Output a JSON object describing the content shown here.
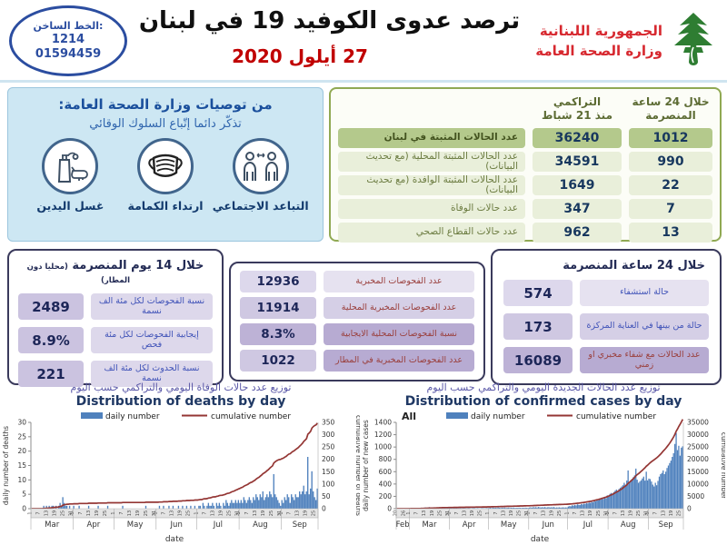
{
  "theme": {
    "accent_blue": "#2b4da0",
    "accent_red": "#c00000",
    "logo_red": "#d7282f",
    "cedar_green": "#2e7d32",
    "green_table_border": "#90a953",
    "purple_box_border": "#3a3a5c",
    "bar_blue": "#4f81bd",
    "line_red": "#943634"
  },
  "header": {
    "hotline": {
      "label": "الخط الساخن:",
      "number1": "1214",
      "number2": "01594459"
    },
    "title": "ترصد عدوى الكوفيد 19 في لبنان",
    "date": "27 أيلول 2020",
    "logo": {
      "line1": "الجمهورية اللبنانية",
      "line2": "وزارة الصحة العامة"
    }
  },
  "recommendations": {
    "title": "من توصيات وزارة الصحة العامة:",
    "subtitle": "تذكّر دائما إتّباع السلوك الوقائي",
    "items": [
      {
        "label": "التباعد الاجتماعي",
        "icon": "social-distancing-icon"
      },
      {
        "label": "ارتداء الكمامة",
        "icon": "face-mask-icon"
      },
      {
        "label": "غسل اليدين",
        "icon": "hand-washing-icon"
      }
    ]
  },
  "cases_table": {
    "col_headers": {
      "cumulative_1": "التراكمي",
      "cumulative_2": "منذ 21 شباط",
      "last24_1": "خلال 24 ساعة",
      "last24_2": "المنصرمة"
    },
    "rows": [
      {
        "label": "عدد الحالات المثبتة في لبنان",
        "cumulative": "36240",
        "last24": "1012"
      },
      {
        "label": "عدد الحالات المثبتة المحلية (مع تحديث البيانات)",
        "cumulative": "34591",
        "last24": "990"
      },
      {
        "label": "عدد الحالات المثبتة الوافدة (مع تحديث البيانات)",
        "cumulative": "1649",
        "last24": "22"
      },
      {
        "label": "عدد حالات الوفاة",
        "cumulative": "347",
        "last24": "7"
      },
      {
        "label": "عدد حالات القطاع الصحي",
        "cumulative": "962",
        "last24": "13"
      }
    ]
  },
  "fourteen_day_box": {
    "title": "خلال 14 يوم المنصرمة",
    "title_note": "(محليا دون المطار)",
    "rows": [
      {
        "label": "نسبة الفحوصات لكل مئة الف نسمة",
        "value": "2489"
      },
      {
        "label": "إيجابية الفحوصات لكل مئة فحص",
        "value": "8.9%"
      },
      {
        "label": "نسبة الحدوث لكل مئة الف نسمة",
        "value": "221"
      }
    ]
  },
  "tests_box": {
    "rows": [
      {
        "label": "عدد الفحوصات المخبرية",
        "value": "12936"
      },
      {
        "label": "عدد الفحوصات المخبرية المحلية",
        "value": "11914"
      },
      {
        "label": "نسبة الفحوصات المحلية الايجابية",
        "value": "8.3%"
      },
      {
        "label": "عدد الفحوصات المخبرية في المطار",
        "value": "1022"
      }
    ]
  },
  "last24_box": {
    "title": "خلال 24 ساعة المنصرمة",
    "rows": [
      {
        "label": "حالة استشفاء",
        "value": "574"
      },
      {
        "label": "حالة من بينها في العناية المركزة",
        "value": "173"
      },
      {
        "label": "عدد الحالات مع شفاء مخبري او زمني",
        "value": "16089"
      }
    ]
  },
  "chart_data": [
    {
      "type": "bar+line",
      "title_ar": "توزيع عدد حالات  الوفاة اليومي والتراكمي حسب اليوم",
      "title_en": "Distribution of deaths by day",
      "legend": [
        "daily number",
        "cumulative number"
      ],
      "ylabel_left": "daily number of deaths",
      "ylabel_right": "cumulative number of deaths",
      "xlabel": "date",
      "ylim_left": [
        0,
        30
      ],
      "yticks_left": [
        0,
        5,
        10,
        15,
        20,
        25,
        30
      ],
      "ylim_right": [
        0,
        350
      ],
      "yticks_right": [
        0,
        50,
        100,
        150,
        200,
        250,
        300,
        350
      ],
      "bar_color": "#4f81bd",
      "line_color": "#943634",
      "grid": false,
      "legend_position": "top",
      "months": [
        {
          "label": "Mar",
          "days": 31
        },
        {
          "label": "Apr",
          "days": 30
        },
        {
          "label": "May",
          "days": 31
        },
        {
          "label": "Jun",
          "days": 30
        },
        {
          "label": "Jul",
          "days": 31
        },
        {
          "label": "Aug",
          "days": 31
        },
        {
          "label": "Sep",
          "days": 27
        }
      ],
      "cumulative_total": 347,
      "daily": [
        0,
        0,
        0,
        0,
        0,
        0,
        0,
        0,
        0,
        1,
        0,
        1,
        0,
        1,
        0,
        1,
        1,
        0,
        1,
        0,
        1,
        2,
        1,
        4,
        2,
        1,
        1,
        0,
        1,
        0,
        0,
        1,
        0,
        0,
        0,
        1,
        0,
        0,
        0,
        0,
        0,
        0,
        1,
        0,
        0,
        0,
        0,
        0,
        0,
        1,
        0,
        0,
        0,
        0,
        0,
        0,
        1,
        0,
        0,
        0,
        0,
        0,
        0,
        0,
        0,
        0,
        0,
        1,
        0,
        0,
        0,
        0,
        0,
        0,
        0,
        0,
        0,
        0,
        0,
        0,
        0,
        0,
        0,
        0,
        1,
        0,
        0,
        0,
        0,
        0,
        0,
        0,
        0,
        0,
        1,
        0,
        0,
        1,
        0,
        0,
        0,
        1,
        0,
        0,
        1,
        0,
        0,
        0,
        1,
        0,
        0,
        1,
        0,
        0,
        1,
        0,
        0,
        1,
        0,
        0,
        1,
        0,
        0,
        1,
        1,
        0,
        2,
        1,
        0,
        1,
        2,
        1,
        1,
        2,
        1,
        0,
        2,
        1,
        2,
        1,
        0,
        2,
        1,
        3,
        2,
        1,
        2,
        3,
        2,
        2,
        3,
        2,
        3,
        2,
        3,
        2,
        4,
        3,
        2,
        3,
        4,
        3,
        2,
        4,
        3,
        5,
        4,
        3,
        5,
        4,
        6,
        3,
        4,
        5,
        4,
        6,
        5,
        4,
        12,
        5,
        4,
        3,
        2,
        1,
        3,
        2,
        4,
        3,
        5,
        4,
        2,
        5,
        4,
        3,
        5,
        4,
        4,
        6,
        5,
        6,
        8,
        5,
        6,
        18,
        5,
        7,
        13,
        6,
        4,
        3,
        7
      ]
    },
    {
      "type": "bar+line",
      "title_ar": "توزيع عدد الحالات الجديدة اليومي والتراكمي حسب اليوم",
      "title_en": "Distribution of confirmed cases by day",
      "series_label": "All",
      "legend": [
        "daily number",
        "cumulative number"
      ],
      "ylabel_left": "daily number of new cases",
      "ylabel_right": "cumulative number",
      "xlabel": "date",
      "ylim_left": [
        0,
        1400
      ],
      "yticks_left": [
        0,
        200,
        400,
        600,
        800,
        1000,
        1200,
        1400
      ],
      "ylim_right": [
        0,
        35000
      ],
      "yticks_right": [
        0,
        5000,
        10000,
        15000,
        20000,
        25000,
        30000,
        35000
      ],
      "bar_color": "#4f81bd",
      "line_color": "#943634",
      "grid": false,
      "legend_position": "top",
      "months": [
        {
          "label": "Feb",
          "days": 10,
          "start": 20
        },
        {
          "label": "Mar",
          "days": 31
        },
        {
          "label": "Apr",
          "days": 30
        },
        {
          "label": "May",
          "days": 31
        },
        {
          "label": "Jun",
          "days": 30
        },
        {
          "label": "Jul",
          "days": 31
        },
        {
          "label": "Aug",
          "days": 31
        },
        {
          "label": "Sep",
          "days": 27
        }
      ],
      "cumulative_total": 36240,
      "daily": [
        1,
        0,
        1,
        0,
        2,
        2,
        1,
        3,
        1,
        2,
        4,
        6,
        3,
        9,
        8,
        12,
        9,
        14,
        10,
        16,
        12,
        15,
        21,
        14,
        18,
        25,
        17,
        20,
        23,
        15,
        18,
        22,
        16,
        24,
        19,
        21,
        17,
        14,
        12,
        9,
        14,
        10,
        8,
        6,
        9,
        12,
        7,
        5,
        8,
        10,
        6,
        9,
        11,
        8,
        7,
        10,
        9,
        6,
        8,
        12,
        9,
        7,
        10,
        8,
        6,
        9,
        11,
        7,
        8,
        10,
        9,
        12,
        15,
        10,
        18,
        14,
        16,
        12,
        20,
        15,
        13,
        16,
        14,
        18,
        12,
        15,
        17,
        13,
        16,
        14,
        18,
        12,
        15,
        13,
        16,
        14,
        12,
        15,
        13,
        16,
        14,
        12,
        18,
        22,
        16,
        25,
        20,
        24,
        18,
        28,
        22,
        19,
        24,
        20,
        26,
        18,
        22,
        25,
        19,
        23,
        21,
        26,
        15,
        20,
        18,
        22,
        17,
        19,
        21,
        18,
        20,
        19,
        35,
        42,
        38,
        55,
        48,
        60,
        52,
        70,
        63,
        58,
        75,
        68,
        82,
        77,
        90,
        85,
        100,
        95,
        110,
        105,
        125,
        120,
        140,
        135,
        150,
        148,
        160,
        158,
        172,
        168,
        216,
        210,
        240,
        255,
        230,
        270,
        290,
        310,
        285,
        320,
        340,
        360,
        380,
        420,
        390,
        456,
        620,
        430,
        460,
        480,
        510,
        540,
        650,
        470,
        420,
        440,
        460,
        490,
        520,
        455,
        600,
        459,
        488,
        480,
        440,
        390,
        360,
        420,
        380,
        450,
        520,
        560,
        580,
        620,
        560,
        600,
        660,
        700,
        740,
        780,
        840,
        900,
        1050,
        1230,
        950,
        1020,
        860,
        990,
        1012
      ]
    }
  ]
}
